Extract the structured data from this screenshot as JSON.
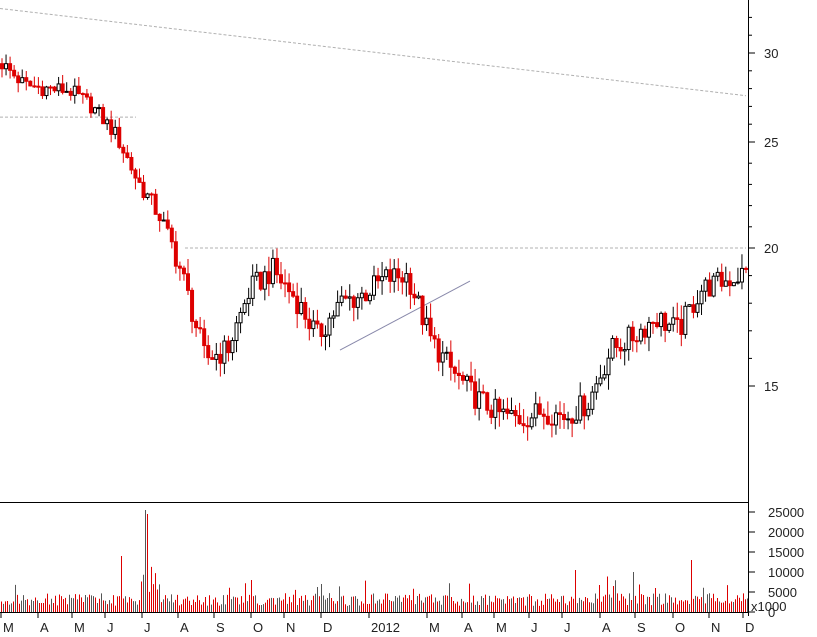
{
  "chart_data": [
    {
      "type": "candlestick",
      "title": "",
      "x": [
        "M",
        "A",
        "M",
        "J",
        "J",
        "A",
        "S",
        "O",
        "N",
        "D",
        "2012",
        "M",
        "A",
        "M",
        "J",
        "J",
        "A",
        "S",
        "O",
        "N",
        "D"
      ],
      "y_ticks": [
        "30",
        "25",
        "20",
        "15"
      ],
      "ylim": [
        12,
        33
      ],
      "close_approx": [
        29.4,
        28.2,
        28.0,
        27.9,
        27.0,
        25.5,
        23.2,
        21.5,
        19.0,
        16.0,
        16.3,
        18.5,
        19.2,
        18.2,
        16.8,
        18.0,
        18.3,
        18.9,
        19.0,
        16.7,
        15.5,
        14.6,
        14.0,
        13.8,
        14.1,
        13.9,
        14.4,
        16.3,
        16.8,
        17.5,
        17.0,
        18.5,
        18.8,
        19.1
      ],
      "annotations": [
        {
          "type": "trendline",
          "from": [
            "M",
            32.5
          ],
          "to": [
            "D",
            27.6
          ]
        },
        {
          "type": "hline",
          "value": 26.4,
          "span": [
            "M",
            "J"
          ]
        },
        {
          "type": "hline",
          "value": 20.0,
          "span": [
            "A",
            "D"
          ]
        },
        {
          "type": "trendline",
          "from": [
            "D",
            16.4
          ],
          "to": [
            "A",
            18.8
          ]
        }
      ],
      "colors": {
        "up": "#000000",
        "down": "#dd0000",
        "guide": "#b0b0b0"
      },
      "grid": false
    },
    {
      "type": "bar",
      "y_ticks": [
        "25000",
        "20000",
        "15000",
        "10000",
        "5000",
        "0"
      ],
      "ylim": [
        0,
        26000
      ],
      "unit_label": "x1000",
      "volume_peaks": [
        {
          "month": "J",
          "value": 25500
        },
        {
          "month": "J",
          "value": 14000
        },
        {
          "month": "O",
          "value": 13000
        }
      ],
      "colors": {
        "bars": "#dd0000"
      }
    }
  ]
}
